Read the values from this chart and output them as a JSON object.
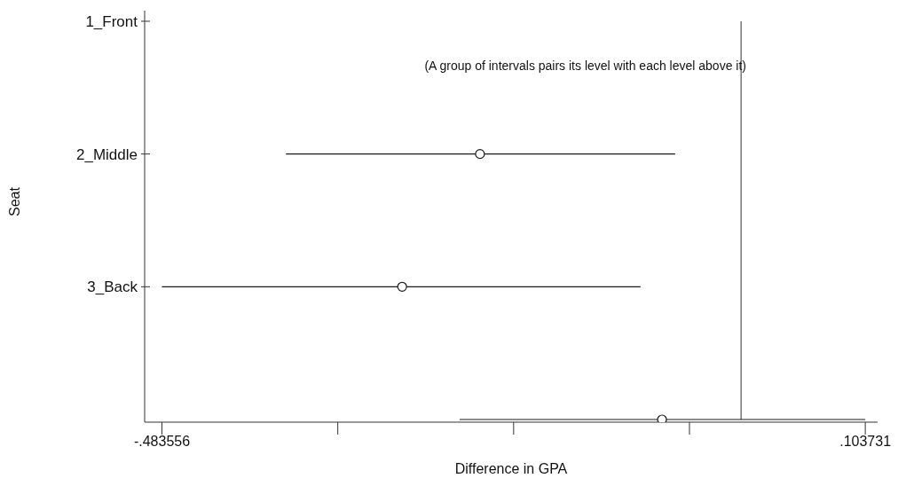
{
  "chart_data": {
    "type": "scatter",
    "orientation": "horizontal",
    "xlabel": "Difference in GPA",
    "ylabel": "Seat",
    "annotations": [
      "(A group of intervals pairs its level with each level above it)"
    ],
    "categories": [
      "1_Front",
      "2_Middle",
      "3_Back",
      null
    ],
    "values": [
      null,
      -0.218,
      -0.283,
      -0.066
    ],
    "errors": [
      null,
      [
        -0.38,
        -0.055
      ],
      [
        -0.4836,
        -0.084
      ],
      [
        -0.235,
        0.1037
      ]
    ],
    "color": "#1a1a1a",
    "marker": "circle",
    "grid": false,
    "xlim": [
      -0.498,
      0.114
    ],
    "xticks": [
      {
        "value": -0.483556,
        "label": "-.483556"
      },
      {
        "value": -0.336734,
        "label": null
      },
      {
        "value": -0.189913,
        "label": null
      },
      {
        "value": -0.043091,
        "label": null
      },
      {
        "value": 0.103731,
        "label": ".103731"
      }
    ],
    "ref_lines": [
      {
        "axis": "x",
        "value": 0
      }
    ]
  }
}
